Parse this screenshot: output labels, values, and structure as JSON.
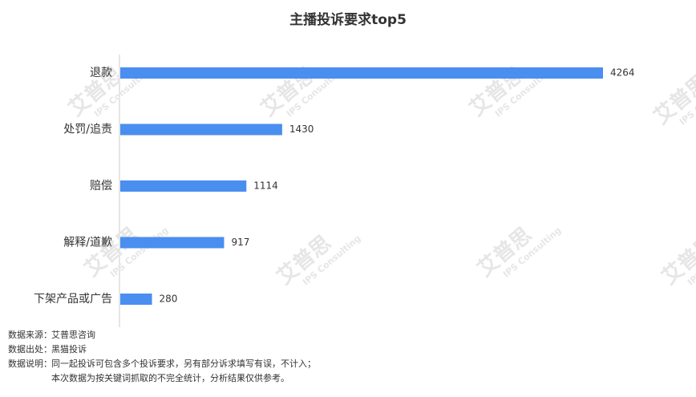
{
  "chart_data": {
    "type": "barh",
    "title": "主播投诉要求top5",
    "categories": [
      "退款",
      "处罚/追责",
      "赔偿",
      "解释/道歉",
      "下架产品或广告"
    ],
    "values": [
      4264,
      1430,
      1114,
      917,
      280
    ],
    "color": "#4a8ef0"
  },
  "watermark": {
    "name": "艾普思",
    "sub": "IPS Consulting"
  },
  "notes": [
    {
      "label": "数据来源：",
      "text": "艾普思咨询"
    },
    {
      "label": "数据出处：",
      "text": "黑猫投诉"
    },
    {
      "label": "数据说明：",
      "text": "同一起投诉可包含多个投诉要求，另有部分诉求填写有误，不计入；"
    },
    {
      "label": "",
      "text": "本次数据为按关键词抓取的不完全统计，分析结果仅供参考。"
    }
  ]
}
